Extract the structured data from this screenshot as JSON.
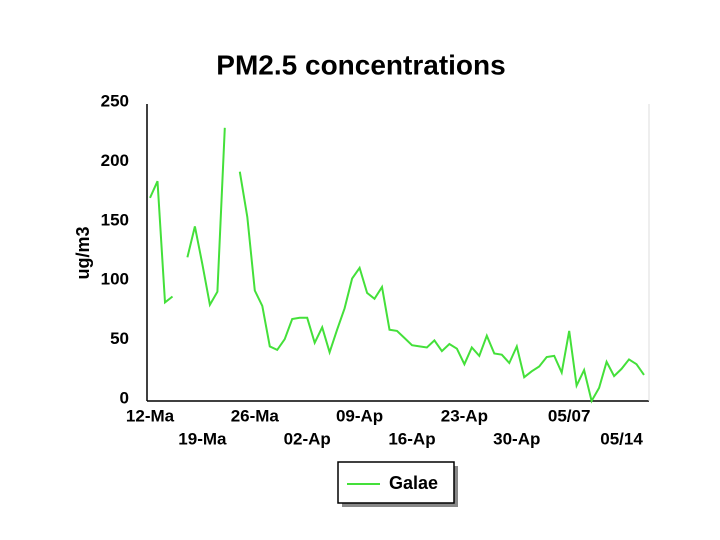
{
  "chart_data": {
    "type": "line",
    "title": "PM2.5 concentrations",
    "y_label": "ug/m3",
    "categories": [
      "12-Ma",
      null,
      null,
      null,
      null,
      null,
      null,
      "19-Ma",
      null,
      null,
      null,
      null,
      null,
      null,
      "26-Ma",
      null,
      null,
      null,
      null,
      null,
      null,
      "02-Ap",
      null,
      null,
      null,
      null,
      null,
      null,
      "09-Ap",
      null,
      null,
      null,
      null,
      null,
      null,
      "16-Ap",
      null,
      null,
      null,
      null,
      null,
      null,
      "23-Ap",
      null,
      null,
      null,
      null,
      null,
      null,
      "30-Ap",
      null,
      null,
      null,
      null,
      null,
      null,
      "05/07",
      null,
      null,
      null,
      null,
      null,
      null,
      "05/14",
      null,
      null,
      null
    ],
    "series": [
      {
        "name": "Galae",
        "color": "#44e03a",
        "values": [
          171,
          185,
          83,
          88,
          null,
          121,
          147,
          115,
          81,
          92,
          230,
          null,
          193,
          155,
          93,
          80,
          46,
          43,
          52,
          69,
          70,
          70,
          49,
          62,
          41,
          60,
          78,
          103,
          112,
          91,
          86,
          96,
          60,
          59,
          53,
          47,
          46,
          45,
          51,
          42,
          48,
          44,
          31,
          45,
          38,
          55,
          40,
          39,
          32,
          46,
          20,
          25,
          29,
          37,
          38,
          24,
          59,
          13,
          26,
          0,
          11,
          33,
          21,
          27,
          35,
          31,
          22
        ]
      }
    ],
    "ylim": [
      0,
      250
    ],
    "yticks": [
      0,
      50,
      100,
      150,
      200,
      250
    ],
    "grid": false,
    "legend": "bottom"
  }
}
